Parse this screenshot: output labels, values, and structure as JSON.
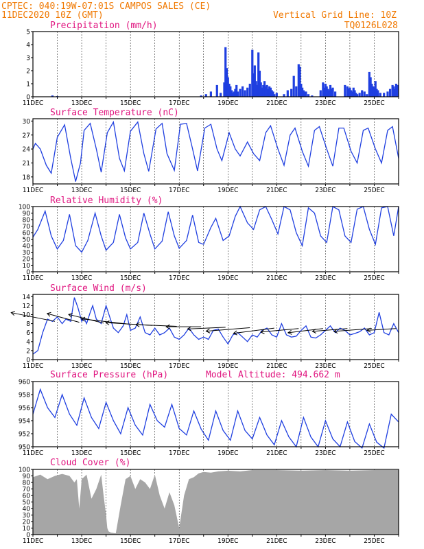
{
  "header": {
    "line1": "CPTEC:  040:19W-07:01S  CAMPOS SALES (CE)",
    "line2_left": "11DEC2020 10Z (GMT)",
    "line2_right": "Vertical Grid Line: 10Z",
    "line3_right": "TQ0126L028"
  },
  "colors": {
    "line": "#1f3fe0",
    "bar": "#1f3fe0",
    "cloud": "#a6a6a6",
    "title": "#e0147f",
    "header": "#f07800"
  },
  "x_axis": {
    "labels": [
      "11DEC",
      "13DEC",
      "15DEC",
      "17DEC",
      "19DEC",
      "21DEC",
      "23DEC",
      "25DEC"
    ],
    "unit": "day",
    "range": [
      0,
      15
    ]
  },
  "chart_data": [
    {
      "type": "bar",
      "title": "Precipitation (mm/h)",
      "ylim": [
        0,
        5
      ],
      "yticks": [
        0,
        1,
        2,
        3,
        4,
        5
      ],
      "x": [
        0.8,
        1.0,
        6.9,
        7.1,
        7.3,
        7.55,
        7.7,
        7.85,
        7.9,
        7.95,
        8.0,
        8.05,
        8.1,
        8.15,
        8.2,
        8.25,
        8.3,
        8.35,
        8.4,
        8.5,
        8.6,
        8.7,
        8.8,
        8.9,
        9.0,
        9.05,
        9.1,
        9.15,
        9.2,
        9.25,
        9.3,
        9.35,
        9.4,
        9.45,
        9.5,
        9.55,
        9.6,
        9.65,
        9.7,
        9.75,
        9.8,
        9.85,
        9.9,
        10.0,
        10.3,
        10.45,
        10.6,
        10.7,
        10.8,
        10.9,
        10.95,
        11.0,
        11.05,
        11.1,
        11.15,
        11.2,
        11.3,
        11.45,
        11.8,
        11.9,
        11.95,
        12.0,
        12.05,
        12.1,
        12.15,
        12.2,
        12.25,
        12.3,
        12.4,
        12.8,
        12.9,
        12.95,
        13.0,
        13.05,
        13.1,
        13.15,
        13.2,
        13.25,
        13.3,
        13.4,
        13.5,
        13.6,
        13.7,
        13.8,
        13.85,
        13.9,
        13.95,
        14.0,
        14.05,
        14.1,
        14.15,
        14.25,
        14.4,
        14.55,
        14.65,
        14.75,
        14.8,
        14.85,
        14.9,
        14.95
      ],
      "values": [
        0.1,
        0.05,
        0.1,
        0.2,
        0.4,
        0.9,
        0.3,
        1.1,
        3.8,
        2.2,
        1.5,
        1.0,
        0.8,
        0.5,
        0.3,
        0.4,
        0.6,
        0.9,
        0.4,
        0.6,
        0.8,
        0.5,
        0.7,
        1.0,
        3.6,
        1.8,
        2.4,
        1.2,
        0.9,
        3.4,
        2.0,
        1.1,
        0.7,
        0.9,
        1.2,
        0.8,
        0.9,
        0.6,
        0.8,
        0.7,
        0.5,
        0.4,
        0.2,
        0.3,
        0.2,
        0.5,
        0.6,
        1.6,
        0.8,
        2.5,
        2.3,
        1.0,
        0.7,
        0.5,
        0.4,
        0.4,
        0.2,
        0.1,
        0.5,
        1.1,
        0.7,
        1.0,
        0.8,
        0.6,
        0.5,
        0.9,
        0.6,
        0.7,
        0.4,
        0.9,
        0.8,
        0.6,
        0.7,
        0.5,
        0.4,
        0.7,
        0.5,
        0.3,
        0.2,
        0.3,
        0.5,
        0.4,
        0.2,
        1.9,
        1.5,
        1.0,
        0.8,
        0.7,
        1.2,
        0.6,
        0.5,
        0.3,
        0.3,
        0.4,
        0.6,
        0.9,
        0.8,
        0.6,
        1.0,
        0.9
      ]
    },
    {
      "type": "line",
      "title": "Surface Temperature (nC)",
      "ylim": [
        16.5,
        30.5
      ],
      "yticks": [
        18,
        21,
        24,
        27,
        30
      ],
      "x": [
        0.0,
        0.1,
        0.3,
        0.55,
        0.75,
        1.0,
        1.3,
        1.55,
        1.75,
        1.95,
        2.1,
        2.35,
        2.6,
        2.8,
        3.05,
        3.3,
        3.55,
        3.75,
        4.0,
        4.3,
        4.55,
        4.75,
        5.05,
        5.3,
        5.5,
        5.8,
        6.05,
        6.3,
        6.55,
        6.75,
        7.05,
        7.3,
        7.55,
        7.75,
        8.05,
        8.3,
        8.5,
        8.8,
        9.05,
        9.3,
        9.55,
        9.75,
        10.05,
        10.3,
        10.55,
        10.75,
        11.05,
        11.3,
        11.55,
        11.75,
        12.05,
        12.3,
        12.55,
        12.75,
        13.05,
        13.3,
        13.55,
        13.75,
        14.05,
        14.3,
        14.55,
        14.75,
        15.0
      ],
      "values": [
        24.0,
        25.2,
        24.0,
        20.5,
        18.8,
        26.5,
        29.2,
        22.0,
        17.0,
        21.0,
        28.0,
        29.5,
        24.0,
        19.0,
        27.5,
        29.8,
        22.0,
        19.3,
        27.8,
        29.8,
        23.0,
        19.2,
        28.3,
        29.5,
        23.0,
        19.4,
        29.3,
        29.5,
        24.0,
        19.3,
        28.5,
        29.3,
        24.0,
        21.5,
        27.5,
        24.0,
        22.5,
        25.5,
        23.0,
        21.5,
        27.5,
        29.0,
        24.0,
        20.5,
        27.0,
        28.5,
        23.5,
        20.3,
        28.0,
        28.8,
        24.0,
        20.3,
        28.5,
        28.5,
        23.5,
        21.0,
        28.0,
        28.5,
        24.0,
        21.0,
        28.0,
        28.8,
        22.0
      ]
    },
    {
      "type": "line",
      "title": "Relative Humidity (%)",
      "ylim": [
        0,
        100
      ],
      "yticks": [
        0,
        10,
        20,
        30,
        40,
        50,
        60,
        70,
        80,
        90,
        100
      ],
      "x": [
        0.0,
        0.2,
        0.5,
        0.75,
        1.0,
        1.25,
        1.5,
        1.75,
        2.0,
        2.25,
        2.55,
        2.8,
        3.0,
        3.3,
        3.55,
        3.8,
        4.0,
        4.3,
        4.55,
        4.8,
        5.0,
        5.3,
        5.55,
        5.8,
        6.0,
        6.3,
        6.55,
        6.8,
        7.0,
        7.3,
        7.5,
        7.8,
        8.05,
        8.3,
        8.5,
        8.8,
        9.05,
        9.3,
        9.55,
        9.8,
        10.05,
        10.3,
        10.55,
        10.8,
        11.05,
        11.3,
        11.55,
        11.8,
        12.05,
        12.3,
        12.55,
        12.8,
        13.05,
        13.3,
        13.55,
        13.8,
        14.05,
        14.3,
        14.55,
        14.8,
        15.0
      ],
      "values": [
        53,
        65,
        93,
        55,
        35,
        48,
        88,
        40,
        30,
        48,
        90,
        55,
        33,
        45,
        88,
        52,
        35,
        45,
        90,
        58,
        35,
        47,
        92,
        55,
        36,
        48,
        87,
        45,
        42,
        68,
        82,
        48,
        55,
        85,
        100,
        75,
        65,
        95,
        100,
        80,
        58,
        100,
        95,
        60,
        40,
        98,
        90,
        55,
        45,
        100,
        95,
        55,
        45,
        96,
        100,
        65,
        42,
        98,
        100,
        55,
        100
      ]
    },
    {
      "type": "line",
      "title": "Surface Wind (m/s)",
      "ylim": [
        0,
        14.5
      ],
      "yticks": [
        0,
        2,
        4,
        6,
        8,
        10,
        12,
        14
      ],
      "x": [
        0.0,
        0.2,
        0.4,
        0.6,
        0.8,
        1.0,
        1.2,
        1.35,
        1.55,
        1.7,
        1.85,
        2.0,
        2.1,
        2.2,
        2.35,
        2.45,
        2.6,
        2.8,
        3.0,
        3.15,
        3.3,
        3.5,
        3.7,
        3.85,
        4.0,
        4.2,
        4.4,
        4.6,
        4.8,
        5.0,
        5.2,
        5.4,
        5.6,
        5.8,
        6.0,
        6.2,
        6.4,
        6.6,
        6.8,
        7.0,
        7.2,
        7.4,
        7.6,
        7.8,
        8.0,
        8.2,
        8.4,
        8.6,
        8.8,
        9.0,
        9.2,
        9.4,
        9.6,
        9.8,
        10.0,
        10.2,
        10.4,
        10.6,
        10.8,
        11.0,
        11.2,
        11.4,
        11.6,
        11.8,
        12.0,
        12.2,
        12.4,
        12.6,
        12.8,
        13.0,
        13.2,
        13.4,
        13.6,
        13.8,
        14.0,
        14.2,
        14.4,
        14.6,
        14.8,
        15.0
      ],
      "values": [
        1.2,
        2.0,
        6.0,
        9.0,
        8.5,
        9.5,
        8.0,
        9.0,
        8.5,
        13.8,
        11.5,
        8.5,
        9.2,
        8.0,
        10.5,
        12.0,
        9.0,
        8.0,
        12.0,
        9.5,
        7.0,
        6.0,
        7.5,
        10.0,
        6.5,
        7.0,
        9.5,
        6.0,
        5.5,
        7.0,
        5.5,
        6.0,
        7.0,
        5.0,
        4.5,
        5.5,
        7.0,
        5.5,
        4.5,
        5.0,
        4.5,
        6.5,
        6.8,
        5.0,
        3.5,
        5.5,
        6.0,
        5.0,
        4.0,
        5.5,
        5.0,
        6.5,
        7.0,
        5.5,
        5.0,
        8.0,
        5.5,
        5.0,
        5.2,
        6.5,
        7.5,
        5.0,
        4.8,
        5.5,
        6.5,
        7.5,
        6.0,
        7.0,
        6.5,
        5.5,
        5.8,
        6.2,
        7.0,
        5.5,
        6.0,
        10.5,
        6.0,
        5.5,
        8.0,
        6.0
      ],
      "vectors": {
        "x": [
          0.9,
          1.9,
          2.9,
          3.9,
          4.9,
          5.9,
          6.9,
          7.9,
          8.9,
          9.9,
          10.9,
          11.9,
          12.9,
          13.9,
          14.9
        ],
        "u": [
          -7.5,
          -5.5,
          -6.0,
          -8.0,
          -8.0,
          -7.0,
          -6.0,
          -6.5,
          -7.5,
          -7.0,
          -6.5,
          -6.0,
          -6.0,
          -6.5,
          -5.0
        ],
        "v": [
          2.5,
          2.5,
          2.5,
          1.5,
          0.8,
          0.5,
          0.0,
          -0.5,
          -1.0,
          -1.5,
          -1.0,
          -1.2,
          -0.8,
          -0.8,
          -0.5
        ],
        "base": [
          8.5,
          8.3,
          8.1,
          7.9,
          7.6,
          7.4,
          7.3,
          7.2,
          7.1,
          7.0,
          6.9,
          6.9,
          6.9,
          6.9,
          6.9
        ]
      }
    },
    {
      "type": "line",
      "title": "Surface Pressure (hPa)",
      "annotation": "Model Altitude: 494.662 m",
      "ylim": [
        950,
        960
      ],
      "yticks": [
        950,
        952,
        954,
        956,
        958,
        960
      ],
      "x": [
        0.0,
        0.3,
        0.6,
        0.9,
        1.2,
        1.5,
        1.8,
        2.1,
        2.4,
        2.7,
        3.0,
        3.3,
        3.6,
        3.9,
        4.2,
        4.5,
        4.8,
        5.1,
        5.4,
        5.7,
        6.0,
        6.3,
        6.6,
        6.9,
        7.2,
        7.5,
        7.8,
        8.1,
        8.4,
        8.7,
        9.0,
        9.3,
        9.6,
        9.9,
        10.2,
        10.5,
        10.8,
        11.1,
        11.4,
        11.7,
        12.0,
        12.3,
        12.6,
        12.9,
        13.2,
        13.5,
        13.8,
        14.1,
        14.4,
        14.7,
        15.0
      ],
      "values": [
        955.0,
        958.8,
        956.0,
        954.5,
        958.0,
        955.0,
        953.3,
        957.5,
        954.5,
        952.8,
        956.8,
        954.0,
        952.0,
        956.0,
        953.3,
        951.8,
        956.5,
        954.0,
        953.0,
        956.5,
        952.8,
        951.8,
        955.5,
        952.7,
        951.0,
        955.5,
        952.5,
        951.0,
        955.5,
        952.5,
        951.2,
        954.5,
        951.8,
        950.3,
        954.0,
        951.5,
        950.0,
        954.5,
        951.5,
        950.0,
        954.0,
        951.2,
        950.0,
        953.8,
        950.8,
        949.8,
        953.5,
        950.7,
        949.8,
        955.0,
        953.8
      ]
    },
    {
      "type": "area",
      "title": "Cloud Cover (%)",
      "ylim": [
        0,
        100
      ],
      "yticks": [
        0,
        10,
        20,
        30,
        40,
        50,
        60,
        70,
        80,
        90,
        100
      ],
      "x": [
        0.0,
        0.3,
        0.6,
        0.9,
        1.2,
        1.5,
        1.7,
        1.8,
        1.9,
        2.0,
        2.2,
        2.4,
        2.6,
        2.8,
        2.9,
        3.0,
        3.05,
        3.1,
        3.2,
        3.4,
        3.6,
        3.8,
        4.0,
        4.2,
        4.4,
        4.6,
        4.8,
        5.0,
        5.2,
        5.4,
        5.6,
        5.8,
        6.0,
        6.2,
        6.4,
        6.6,
        6.8,
        7.0,
        7.3,
        7.6,
        8.0,
        8.5,
        9.0,
        10.0,
        11.0,
        12.0,
        13.0,
        14.0,
        15.0
      ],
      "values": [
        88,
        92,
        85,
        90,
        93,
        90,
        80,
        85,
        40,
        85,
        92,
        55,
        70,
        92,
        60,
        30,
        10,
        5,
        3,
        2,
        45,
        85,
        90,
        70,
        85,
        80,
        70,
        92,
        60,
        40,
        65,
        45,
        10,
        60,
        85,
        88,
        94,
        96,
        95,
        97,
        98,
        97,
        99,
        99,
        98,
        99,
        98,
        99,
        99
      ]
    }
  ]
}
